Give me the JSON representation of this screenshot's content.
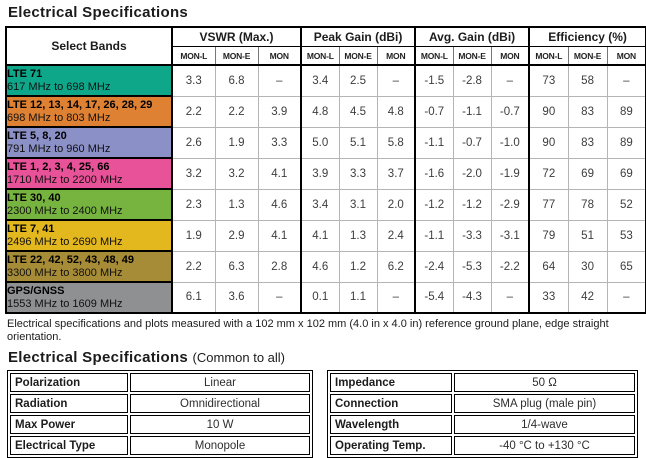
{
  "page": {
    "title1": "Electrical Specifications",
    "title2_main": "Electrical Specifications",
    "title2_paren": "(Common to all)",
    "note": "Electrical specifications and plots measured with a 102 mm x 102 mm (4.0 in x 4.0 in) reference ground plane, edge straight orientation."
  },
  "spec_table": {
    "corner_header": "Select Bands",
    "groups": [
      {
        "label": "VSWR (Max.)",
        "subcols": [
          "MON-L",
          "MON-E",
          "MON"
        ]
      },
      {
        "label": "Peak Gain (dBi)",
        "subcols": [
          "MON-L",
          "MON-E",
          "MON"
        ]
      },
      {
        "label": "Avg. Gain (dBi)",
        "subcols": [
          "MON-L",
          "MON-E",
          "MON"
        ]
      },
      {
        "label": "Efficiency (%)",
        "subcols": [
          "MON-L",
          "MON-E",
          "MON"
        ]
      }
    ],
    "rows": [
      {
        "band": "LTE 71",
        "range": "617 MHz to 698 MHz",
        "color": "#0fa78a",
        "values": [
          "3.3",
          "6.8",
          "–",
          "3.4",
          "2.5",
          "–",
          "-1.5",
          "-2.8",
          "–",
          "73",
          "58",
          "–"
        ]
      },
      {
        "band": "LTE 12, 13, 14, 17, 26, 28, 29",
        "range": "698 MHz to 803 MHz",
        "color": "#de8133",
        "values": [
          "2.2",
          "2.2",
          "3.9",
          "4.8",
          "4.5",
          "4.8",
          "-0.7",
          "-1.1",
          "-0.7",
          "90",
          "83",
          "89"
        ]
      },
      {
        "band": "LTE 5, 8, 20",
        "range": "791 MHz to 960 MHz",
        "color": "#8b90c6",
        "values": [
          "2.6",
          "1.9",
          "3.3",
          "5.0",
          "5.1",
          "5.8",
          "-1.1",
          "-0.7",
          "-1.0",
          "90",
          "83",
          "89"
        ]
      },
      {
        "band": "LTE 1, 2, 3, 4, 25, 66",
        "range": "1710 MHz to 2200 MHz",
        "color": "#e75298",
        "values": [
          "3.2",
          "3.2",
          "4.1",
          "3.9",
          "3.3",
          "3.7",
          "-1.6",
          "-2.0",
          "-1.9",
          "72",
          "69",
          "69"
        ]
      },
      {
        "band": "LTE 30, 40",
        "range": "2300 MHz to 2400 MHz",
        "color": "#77b43f",
        "values": [
          "2.3",
          "1.3",
          "4.6",
          "3.4",
          "3.1",
          "2.0",
          "-1.2",
          "-1.2",
          "-2.9",
          "77",
          "78",
          "52"
        ]
      },
      {
        "band": "LTE 7, 41",
        "range": "2496 MHz to 2690 MHz",
        "color": "#e3b71e",
        "values": [
          "1.9",
          "2.9",
          "4.1",
          "4.1",
          "1.3",
          "2.4",
          "-1.1",
          "-3.3",
          "-3.1",
          "79",
          "51",
          "53"
        ]
      },
      {
        "band": "LTE 22, 42, 52, 43, 48, 49",
        "range": "3300 MHz to 3800 MHz",
        "color": "#a78c37",
        "values": [
          "2.2",
          "6.3",
          "2.8",
          "4.6",
          "1.2",
          "6.2",
          "-2.4",
          "-5.3",
          "-2.2",
          "64",
          "30",
          "65"
        ]
      },
      {
        "band": "GPS/GNSS",
        "range": "1553 MHz to 1609 MHz",
        "color": "#8f9092",
        "values": [
          "6.1",
          "3.6",
          "–",
          "0.1",
          "1.1",
          "–",
          "-5.4",
          "-4.3",
          "–",
          "33",
          "42",
          "–"
        ]
      }
    ]
  },
  "common_left": [
    {
      "label": "Polarization",
      "value": "Linear"
    },
    {
      "label": "Radiation",
      "value": "Omnidirectional"
    },
    {
      "label": "Max Power",
      "value": "10 W"
    },
    {
      "label": "Electrical Type",
      "value": "Monopole"
    }
  ],
  "common_right": [
    {
      "label": "Impedance",
      "value": "50 Ω"
    },
    {
      "label": "Connection",
      "value": "SMA plug (male pin)"
    },
    {
      "label": "Wavelength",
      "value": "1/4-wave"
    },
    {
      "label": "Operating Temp.",
      "value": "-40 °C to +130 °C"
    }
  ]
}
